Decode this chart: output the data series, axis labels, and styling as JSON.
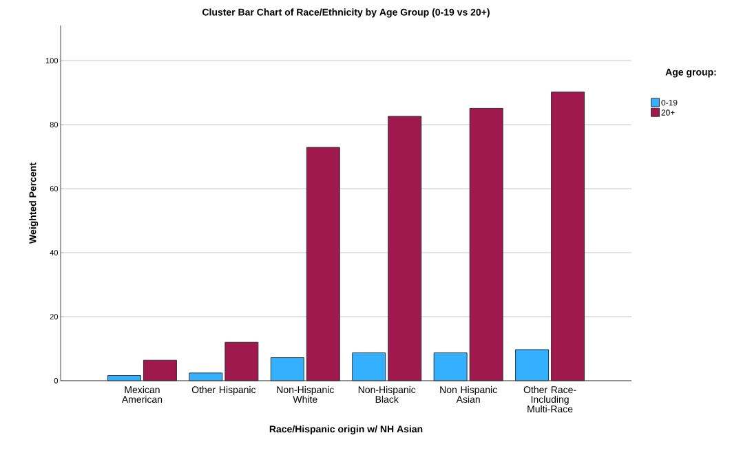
{
  "chart_data": {
    "type": "bar",
    "title": "Cluster Bar Chart of Race/Ethnicity by Age Group (0-19 vs 20+)",
    "xlabel": "Race/Hispanic origin w/ NH Asian",
    "ylabel": "Weighted Percent",
    "legend_title": "Age group:",
    "categories": [
      "Mexican American",
      "Other Hispanic",
      "Non-Hispanic White",
      "Non-Hispanic Black",
      "Non Hispanic Asian",
      "Other Race-Including Multi-Race"
    ],
    "series": [
      {
        "name": "0-19",
        "color": "#33b0ff",
        "values": [
          1.6,
          2.4,
          7.2,
          8.7,
          8.7,
          9.7
        ]
      },
      {
        "name": "20+",
        "color": "#a0194e",
        "values": [
          6.4,
          12.0,
          72.9,
          82.6,
          85.1,
          90.2
        ]
      }
    ],
    "ylim": [
      0,
      111
    ],
    "yticks": [
      0,
      20,
      40,
      60,
      80,
      100
    ],
    "grid": "y",
    "legend": "right"
  }
}
